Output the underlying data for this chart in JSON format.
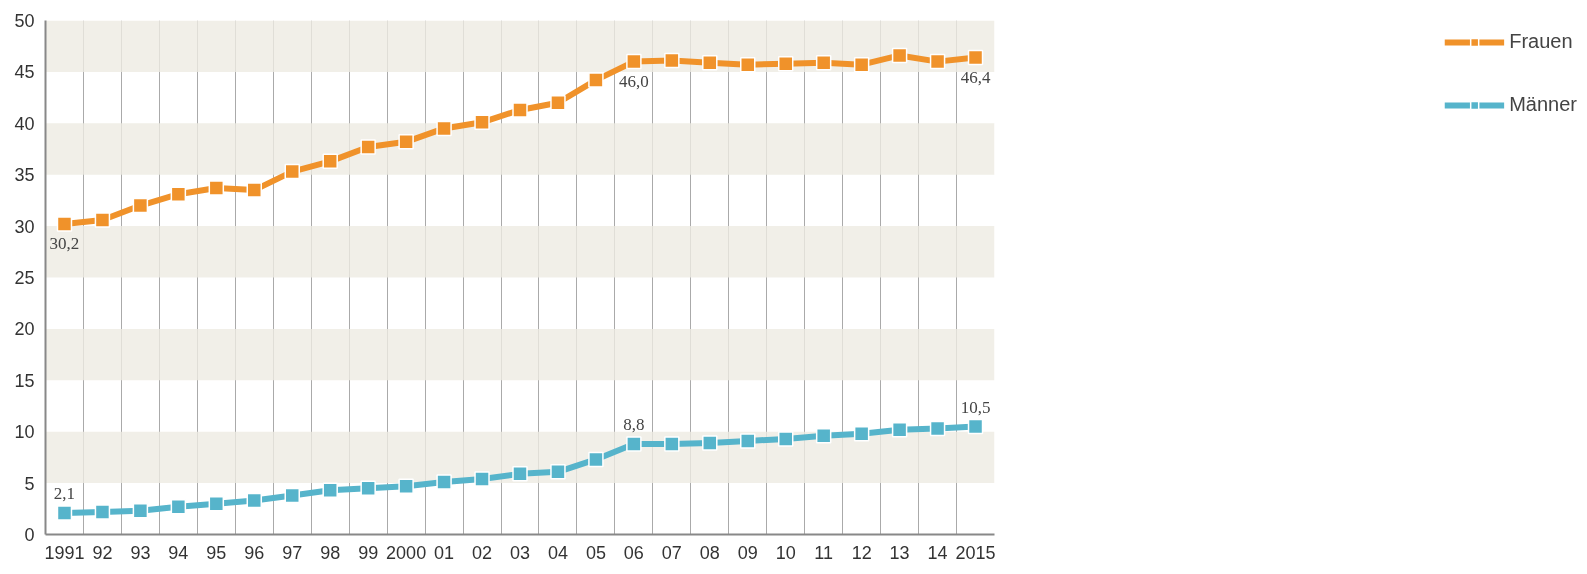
{
  "chart_data": {
    "type": "line",
    "categories": [
      "1991",
      "92",
      "93",
      "94",
      "95",
      "96",
      "97",
      "98",
      "99",
      "2000",
      "01",
      "02",
      "03",
      "04",
      "05",
      "06",
      "07",
      "08",
      "09",
      "10",
      "11",
      "12",
      "13",
      "14",
      "2015"
    ],
    "series": [
      {
        "name": "Frauen",
        "color": "#f0922a",
        "values": [
          30.2,
          30.6,
          32.0,
          33.1,
          33.7,
          33.5,
          35.3,
          36.3,
          37.7,
          38.2,
          39.5,
          40.1,
          41.3,
          42.0,
          44.2,
          46.0,
          46.1,
          45.9,
          45.7,
          45.8,
          45.9,
          45.7,
          46.6,
          46.0,
          46.4
        ],
        "value_labels": [
          "30,2",
          null,
          null,
          null,
          null,
          null,
          null,
          null,
          null,
          null,
          null,
          null,
          null,
          null,
          null,
          "46,0",
          null,
          null,
          null,
          null,
          null,
          null,
          null,
          null,
          "46,4"
        ]
      },
      {
        "name": "Männer",
        "color": "#56b4cb",
        "values": [
          2.1,
          2.2,
          2.3,
          2.7,
          3.0,
          3.3,
          3.8,
          4.3,
          4.5,
          4.7,
          5.1,
          5.4,
          5.9,
          6.1,
          7.3,
          8.8,
          8.8,
          8.9,
          9.1,
          9.3,
          9.6,
          9.8,
          10.2,
          10.3,
          10.5
        ],
        "value_labels": [
          "2,1",
          null,
          null,
          null,
          null,
          null,
          null,
          null,
          null,
          null,
          null,
          null,
          null,
          null,
          null,
          "8,8",
          null,
          null,
          null,
          null,
          null,
          null,
          null,
          null,
          "10,5"
        ]
      }
    ],
    "ylim": [
      0,
      50
    ],
    "yticks": [
      0,
      5,
      10,
      15,
      20,
      25,
      30,
      35,
      40,
      45,
      50
    ],
    "grid": true,
    "legend": "right",
    "marker": "square",
    "line_style": "solid"
  }
}
